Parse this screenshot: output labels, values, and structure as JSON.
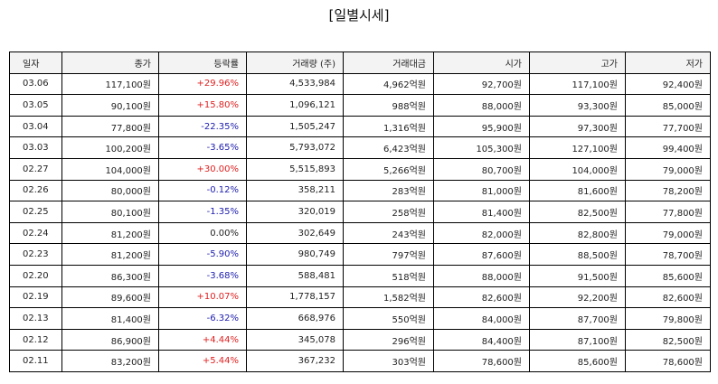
{
  "title": "[일별시세]",
  "columns": [
    "일자",
    "종가",
    "등락률",
    "거래량 (주)",
    "거래대금",
    "시가",
    "고가",
    "저가"
  ],
  "colors": {
    "up": "#e02020",
    "down": "#2020b0",
    "flat": "#222222"
  },
  "rows": [
    {
      "date": "03.06",
      "close": "117,100원",
      "change": "+29.96%",
      "dir": "up",
      "volume": "4,533,984",
      "amount": "4,962억원",
      "open": "92,700원",
      "high": "117,100원",
      "low": "92,400원"
    },
    {
      "date": "03.05",
      "close": "90,100원",
      "change": "+15.80%",
      "dir": "up",
      "volume": "1,096,121",
      "amount": "988억원",
      "open": "88,000원",
      "high": "93,300원",
      "low": "85,000원"
    },
    {
      "date": "03.04",
      "close": "77,800원",
      "change": "-22.35%",
      "dir": "down",
      "volume": "1,505,247",
      "amount": "1,316억원",
      "open": "95,900원",
      "high": "97,300원",
      "low": "77,700원"
    },
    {
      "date": "03.03",
      "close": "100,200원",
      "change": "-3.65%",
      "dir": "down",
      "volume": "5,793,072",
      "amount": "6,423억원",
      "open": "105,300원",
      "high": "127,100원",
      "low": "99,400원"
    },
    {
      "date": "02.27",
      "close": "104,000원",
      "change": "+30.00%",
      "dir": "up",
      "volume": "5,515,893",
      "amount": "5,266억원",
      "open": "80,700원",
      "high": "104,000원",
      "low": "79,000원"
    },
    {
      "date": "02.26",
      "close": "80,000원",
      "change": "-0.12%",
      "dir": "down",
      "volume": "358,211",
      "amount": "283억원",
      "open": "81,000원",
      "high": "81,600원",
      "low": "78,200원"
    },
    {
      "date": "02.25",
      "close": "80,100원",
      "change": "-1.35%",
      "dir": "down",
      "volume": "320,019",
      "amount": "258억원",
      "open": "81,400원",
      "high": "82,500원",
      "low": "77,800원"
    },
    {
      "date": "02.24",
      "close": "81,200원",
      "change": "0.00%",
      "dir": "flat",
      "volume": "302,649",
      "amount": "243억원",
      "open": "82,000원",
      "high": "82,800원",
      "low": "79,000원"
    },
    {
      "date": "02.23",
      "close": "81,200원",
      "change": "-5.90%",
      "dir": "down",
      "volume": "980,749",
      "amount": "797억원",
      "open": "87,600원",
      "high": "88,500원",
      "low": "78,700원"
    },
    {
      "date": "02.20",
      "close": "86,300원",
      "change": "-3.68%",
      "dir": "down",
      "volume": "588,481",
      "amount": "518억원",
      "open": "88,000원",
      "high": "91,500원",
      "low": "85,600원"
    },
    {
      "date": "02.19",
      "close": "89,600원",
      "change": "+10.07%",
      "dir": "up",
      "volume": "1,778,157",
      "amount": "1,582억원",
      "open": "82,600원",
      "high": "92,200원",
      "low": "82,600원"
    },
    {
      "date": "02.13",
      "close": "81,400원",
      "change": "-6.32%",
      "dir": "down",
      "volume": "668,976",
      "amount": "550억원",
      "open": "84,000원",
      "high": "87,700원",
      "low": "79,800원"
    },
    {
      "date": "02.12",
      "close": "86,900원",
      "change": "+4.44%",
      "dir": "up",
      "volume": "345,078",
      "amount": "296억원",
      "open": "84,400원",
      "high": "87,100원",
      "low": "82,500원"
    },
    {
      "date": "02.11",
      "close": "83,200원",
      "change": "+5.44%",
      "dir": "up",
      "volume": "367,232",
      "amount": "303억원",
      "open": "78,600원",
      "high": "85,600원",
      "low": "78,600원"
    }
  ]
}
